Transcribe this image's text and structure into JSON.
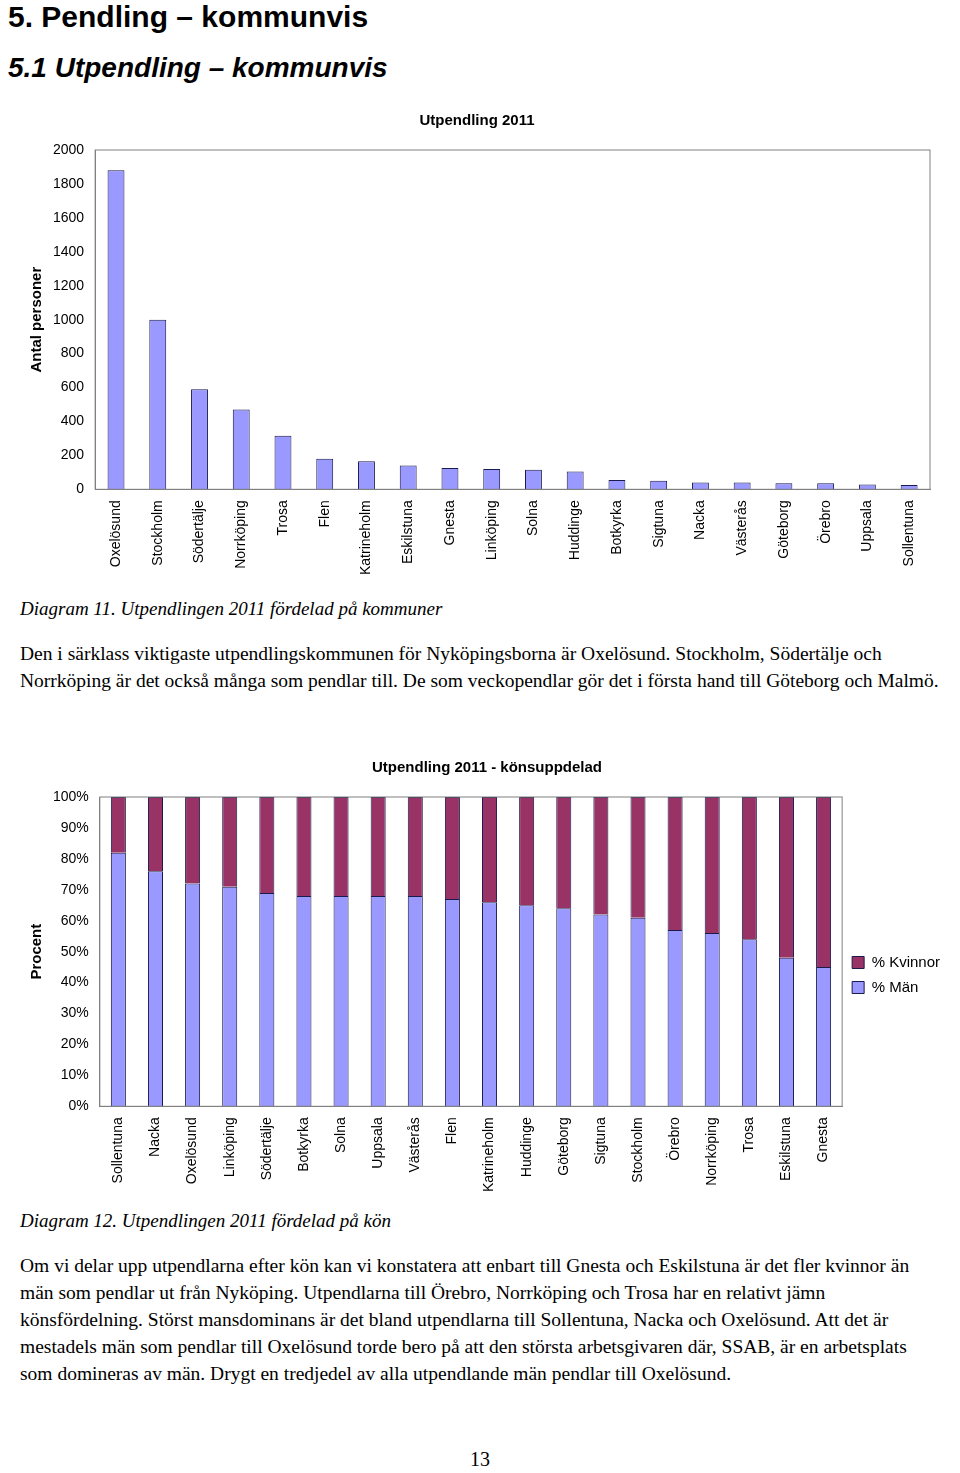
{
  "document": {
    "heading": "5. Pendling – kommunvis",
    "subheading": "5.1 Utpendling – kommunvis",
    "captions": [
      "Diagram 11. Utpendlingen 2011 fördelad på kommuner",
      "Diagram 12. Utpendlingen 2011 fördelad på kön"
    ],
    "paragraphs": [
      "Den i särklass viktigaste utpendlingskommunen för Nyköpingsborna är Oxelösund. Stockholm, Södertälje och Norrköping är det också många som pendlar till. De som veckopendlar gör det i första hand till Göteborg och Malmö.",
      "Om vi delar upp utpendlarna efter kön kan vi konstatera att enbart till Gnesta och Eskilstuna är det fler kvinnor än män som pendlar ut från Nyköping. Utpendlarna till Örebro, Norrköping och Trosa har en relativt jämn könsfördelning. Störst mansdominans är det bland utpendlarna till Sollentuna, Nacka och Oxelösund. Att det är mestadels män som pendlar till Oxelösund torde bero på att den största arbetsgivaren där, SSAB, är en arbetsplats som domineras av män. Drygt en tredjedel av alla utpendlande män pendlar till Oxelösund."
    ],
    "page_number": "13"
  },
  "chart_data": [
    {
      "type": "bar",
      "title": "Utpendling 2011",
      "y_label": "Antal personer",
      "categories": [
        "Oxelösund",
        "Stockholm",
        "Södertälje",
        "Norrköping",
        "Trosa",
        "Flen",
        "Katrineholm",
        "Eskilstuna",
        "Gnesta",
        "Linköping",
        "Solna",
        "Huddinge",
        "Botkyrka",
        "Sigtuna",
        "Nacka",
        "Västerås",
        "Göteborg",
        "Örebro",
        "Uppsala",
        "Sollentuna"
      ],
      "values": [
        1880,
        1000,
        590,
        470,
        315,
        180,
        165,
        140,
        125,
        120,
        115,
        105,
        55,
        50,
        40,
        40,
        35,
        35,
        28,
        25
      ],
      "color": "#9999ff",
      "ylim": [
        0,
        2000
      ],
      "yticks": [
        0,
        200,
        400,
        600,
        800,
        1000,
        1200,
        1400,
        1600,
        1800,
        2000
      ],
      "grid": false
    },
    {
      "type": "bar",
      "title": "Utpendling 2011 - könsuppdelad",
      "y_label": "Procent",
      "categories": [
        "Sollentuna",
        "Nacka",
        "Oxelösund",
        "Linköping",
        "Södertälje",
        "Botkyrka",
        "Solna",
        "Uppsala",
        "Västerås",
        "Flen",
        "Katrineholm",
        "Huddinge",
        "Göteborg",
        "Sigtuna",
        "Stockholm",
        "Örebro",
        "Norrköping",
        "Trosa",
        "Eskilstuna",
        "Gnesta"
      ],
      "series": [
        {
          "name": "% Män",
          "color": "#9999ff",
          "values": [
            82,
            76,
            72,
            71,
            69,
            68,
            68,
            68,
            68,
            67,
            66,
            65,
            64,
            62,
            61,
            57,
            56,
            54,
            48,
            45
          ]
        },
        {
          "name": "% Kvinnor",
          "color": "#993366",
          "values": [
            18,
            24,
            28,
            29,
            31,
            32,
            32,
            32,
            32,
            33,
            34,
            35,
            36,
            38,
            39,
            43,
            44,
            46,
            52,
            55
          ]
        }
      ],
      "stacked": true,
      "legend": "right",
      "ylim": [
        0,
        100
      ],
      "yticks": [
        {
          "value": 0,
          "label": "0%"
        },
        {
          "value": 10,
          "label": "10%"
        },
        {
          "value": 20,
          "label": "20%"
        },
        {
          "value": 30,
          "label": "30%"
        },
        {
          "value": 40,
          "label": "40%"
        },
        {
          "value": 50,
          "label": "50%"
        },
        {
          "value": 60,
          "label": "60%"
        },
        {
          "value": 70,
          "label": "70%"
        },
        {
          "value": 80,
          "label": "80%"
        },
        {
          "value": 90,
          "label": "90%"
        },
        {
          "value": 100,
          "label": "100%"
        }
      ],
      "grid": false
    }
  ]
}
